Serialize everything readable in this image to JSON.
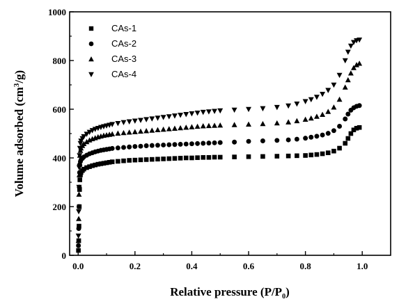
{
  "chart_data": {
    "type": "scatter",
    "xlabel": "Relative pressure (P/P",
    "xlabel_sub": "0",
    "xlabel_close": ")",
    "ylabel": "Volume adsorbed (cm",
    "ylabel_sup": "3",
    "ylabel_close": "/g)",
    "xlim": [
      -0.03,
      1.1
    ],
    "ylim": [
      0,
      1000
    ],
    "xticks": [
      "0.0",
      "0.2",
      "0.4",
      "0.6",
      "0.8",
      "1.0"
    ],
    "yticks": [
      "0",
      "200",
      "400",
      "600",
      "800",
      "1000"
    ],
    "grid": false,
    "legend_position": "top-left",
    "series": [
      {
        "name": "CAs-1",
        "marker": "square",
        "color": "#000000",
        "points": [
          [
            0.001,
            20
          ],
          [
            0.002,
            60
          ],
          [
            0.003,
            120
          ],
          [
            0.004,
            200
          ],
          [
            0.005,
            270
          ],
          [
            0.006,
            310
          ],
          [
            0.008,
            330
          ],
          [
            0.01,
            340
          ],
          [
            0.015,
            348
          ],
          [
            0.02,
            354
          ],
          [
            0.03,
            360
          ],
          [
            0.04,
            364
          ],
          [
            0.05,
            368
          ],
          [
            0.06,
            371
          ],
          [
            0.07,
            374
          ],
          [
            0.08,
            376
          ],
          [
            0.09,
            378
          ],
          [
            0.1,
            380
          ],
          [
            0.11,
            382
          ],
          [
            0.12,
            384
          ],
          [
            0.14,
            386
          ],
          [
            0.16,
            388
          ],
          [
            0.18,
            390
          ],
          [
            0.2,
            391
          ],
          [
            0.22,
            392
          ],
          [
            0.24,
            393
          ],
          [
            0.26,
            394
          ],
          [
            0.28,
            395
          ],
          [
            0.3,
            396
          ],
          [
            0.32,
            397
          ],
          [
            0.34,
            398
          ],
          [
            0.36,
            399
          ],
          [
            0.38,
            400
          ],
          [
            0.4,
            400
          ],
          [
            0.42,
            401
          ],
          [
            0.44,
            402
          ],
          [
            0.46,
            402
          ],
          [
            0.48,
            403
          ],
          [
            0.5,
            403
          ],
          [
            0.55,
            404
          ],
          [
            0.6,
            405
          ],
          [
            0.65,
            406
          ],
          [
            0.7,
            407
          ],
          [
            0.74,
            408
          ],
          [
            0.77,
            409
          ],
          [
            0.8,
            410
          ],
          [
            0.82,
            412
          ],
          [
            0.84,
            414
          ],
          [
            0.86,
            417
          ],
          [
            0.88,
            421
          ],
          [
            0.9,
            428
          ],
          [
            0.92,
            440
          ],
          [
            0.94,
            460
          ],
          [
            0.95,
            480
          ],
          [
            0.96,
            500
          ],
          [
            0.97,
            515
          ],
          [
            0.98,
            522
          ],
          [
            0.99,
            525
          ]
        ]
      },
      {
        "name": "CAs-2",
        "marker": "circle",
        "color": "#000000",
        "points": [
          [
            0.001,
            40
          ],
          [
            0.002,
            110
          ],
          [
            0.003,
            200
          ],
          [
            0.004,
            280
          ],
          [
            0.005,
            340
          ],
          [
            0.006,
            370
          ],
          [
            0.008,
            385
          ],
          [
            0.01,
            392
          ],
          [
            0.015,
            398
          ],
          [
            0.02,
            404
          ],
          [
            0.03,
            411
          ],
          [
            0.04,
            417
          ],
          [
            0.05,
            421
          ],
          [
            0.06,
            425
          ],
          [
            0.07,
            428
          ],
          [
            0.08,
            431
          ],
          [
            0.09,
            433
          ],
          [
            0.1,
            435
          ],
          [
            0.11,
            437
          ],
          [
            0.12,
            439
          ],
          [
            0.14,
            441
          ],
          [
            0.16,
            443
          ],
          [
            0.18,
            445
          ],
          [
            0.2,
            447
          ],
          [
            0.22,
            448
          ],
          [
            0.24,
            450
          ],
          [
            0.26,
            451
          ],
          [
            0.28,
            452
          ],
          [
            0.3,
            453
          ],
          [
            0.32,
            454
          ],
          [
            0.34,
            455
          ],
          [
            0.36,
            456
          ],
          [
            0.38,
            457
          ],
          [
            0.4,
            458
          ],
          [
            0.42,
            459
          ],
          [
            0.44,
            460
          ],
          [
            0.46,
            461
          ],
          [
            0.48,
            462
          ],
          [
            0.5,
            463
          ],
          [
            0.55,
            465
          ],
          [
            0.6,
            468
          ],
          [
            0.65,
            470
          ],
          [
            0.7,
            472
          ],
          [
            0.74,
            474
          ],
          [
            0.77,
            477
          ],
          [
            0.8,
            481
          ],
          [
            0.82,
            485
          ],
          [
            0.84,
            489
          ],
          [
            0.86,
            494
          ],
          [
            0.88,
            501
          ],
          [
            0.9,
            512
          ],
          [
            0.92,
            530
          ],
          [
            0.94,
            560
          ],
          [
            0.95,
            580
          ],
          [
            0.96,
            596
          ],
          [
            0.97,
            606
          ],
          [
            0.98,
            612
          ],
          [
            0.99,
            615
          ]
        ]
      },
      {
        "name": "CAs-3",
        "marker": "triangle-up",
        "color": "#000000",
        "points": [
          [
            0.001,
            60
          ],
          [
            0.002,
            150
          ],
          [
            0.003,
            250
          ],
          [
            0.004,
            330
          ],
          [
            0.005,
            380
          ],
          [
            0.006,
            410
          ],
          [
            0.008,
            430
          ],
          [
            0.01,
            440
          ],
          [
            0.015,
            450
          ],
          [
            0.02,
            458
          ],
          [
            0.03,
            466
          ],
          [
            0.04,
            473
          ],
          [
            0.05,
            478
          ],
          [
            0.06,
            482
          ],
          [
            0.07,
            486
          ],
          [
            0.08,
            489
          ],
          [
            0.09,
            492
          ],
          [
            0.1,
            494
          ],
          [
            0.11,
            496
          ],
          [
            0.12,
            498
          ],
          [
            0.14,
            501
          ],
          [
            0.16,
            503
          ],
          [
            0.18,
            505
          ],
          [
            0.2,
            507
          ],
          [
            0.22,
            509
          ],
          [
            0.24,
            511
          ],
          [
            0.26,
            513
          ],
          [
            0.28,
            515
          ],
          [
            0.3,
            517
          ],
          [
            0.32,
            519
          ],
          [
            0.34,
            521
          ],
          [
            0.36,
            523
          ],
          [
            0.38,
            525
          ],
          [
            0.4,
            527
          ],
          [
            0.42,
            529
          ],
          [
            0.44,
            531
          ],
          [
            0.46,
            532
          ],
          [
            0.48,
            533
          ],
          [
            0.5,
            534
          ],
          [
            0.55,
            536
          ],
          [
            0.6,
            538
          ],
          [
            0.65,
            540
          ],
          [
            0.7,
            543
          ],
          [
            0.74,
            547
          ],
          [
            0.77,
            552
          ],
          [
            0.8,
            558
          ],
          [
            0.82,
            563
          ],
          [
            0.84,
            570
          ],
          [
            0.86,
            578
          ],
          [
            0.88,
            590
          ],
          [
            0.9,
            608
          ],
          [
            0.92,
            640
          ],
          [
            0.94,
            690
          ],
          [
            0.95,
            720
          ],
          [
            0.96,
            748
          ],
          [
            0.97,
            770
          ],
          [
            0.98,
            782
          ],
          [
            0.99,
            788
          ]
        ]
      },
      {
        "name": "CAs-4",
        "marker": "triangle-down",
        "color": "#000000",
        "points": [
          [
            0.001,
            80
          ],
          [
            0.002,
            180
          ],
          [
            0.003,
            280
          ],
          [
            0.004,
            360
          ],
          [
            0.005,
            410
          ],
          [
            0.006,
            440
          ],
          [
            0.008,
            460
          ],
          [
            0.01,
            470
          ],
          [
            0.015,
            480
          ],
          [
            0.02,
            488
          ],
          [
            0.03,
            498
          ],
          [
            0.04,
            506
          ],
          [
            0.05,
            513
          ],
          [
            0.06,
            518
          ],
          [
            0.07,
            522
          ],
          [
            0.08,
            526
          ],
          [
            0.09,
            529
          ],
          [
            0.1,
            532
          ],
          [
            0.11,
            535
          ],
          [
            0.12,
            538
          ],
          [
            0.14,
            542
          ],
          [
            0.16,
            546
          ],
          [
            0.18,
            549
          ],
          [
            0.2,
            552
          ],
          [
            0.22,
            555
          ],
          [
            0.24,
            558
          ],
          [
            0.26,
            561
          ],
          [
            0.28,
            564
          ],
          [
            0.3,
            567
          ],
          [
            0.32,
            570
          ],
          [
            0.34,
            573
          ],
          [
            0.36,
            576
          ],
          [
            0.38,
            579
          ],
          [
            0.4,
            582
          ],
          [
            0.42,
            585
          ],
          [
            0.44,
            588
          ],
          [
            0.46,
            590
          ],
          [
            0.48,
            592
          ],
          [
            0.5,
            594
          ],
          [
            0.55,
            597
          ],
          [
            0.6,
            600
          ],
          [
            0.65,
            603
          ],
          [
            0.7,
            608
          ],
          [
            0.74,
            614
          ],
          [
            0.77,
            622
          ],
          [
            0.8,
            632
          ],
          [
            0.82,
            640
          ],
          [
            0.84,
            650
          ],
          [
            0.86,
            662
          ],
          [
            0.88,
            678
          ],
          [
            0.9,
            700
          ],
          [
            0.92,
            740
          ],
          [
            0.94,
            800
          ],
          [
            0.95,
            835
          ],
          [
            0.96,
            860
          ],
          [
            0.97,
            875
          ],
          [
            0.98,
            882
          ],
          [
            0.99,
            885
          ]
        ]
      }
    ]
  }
}
